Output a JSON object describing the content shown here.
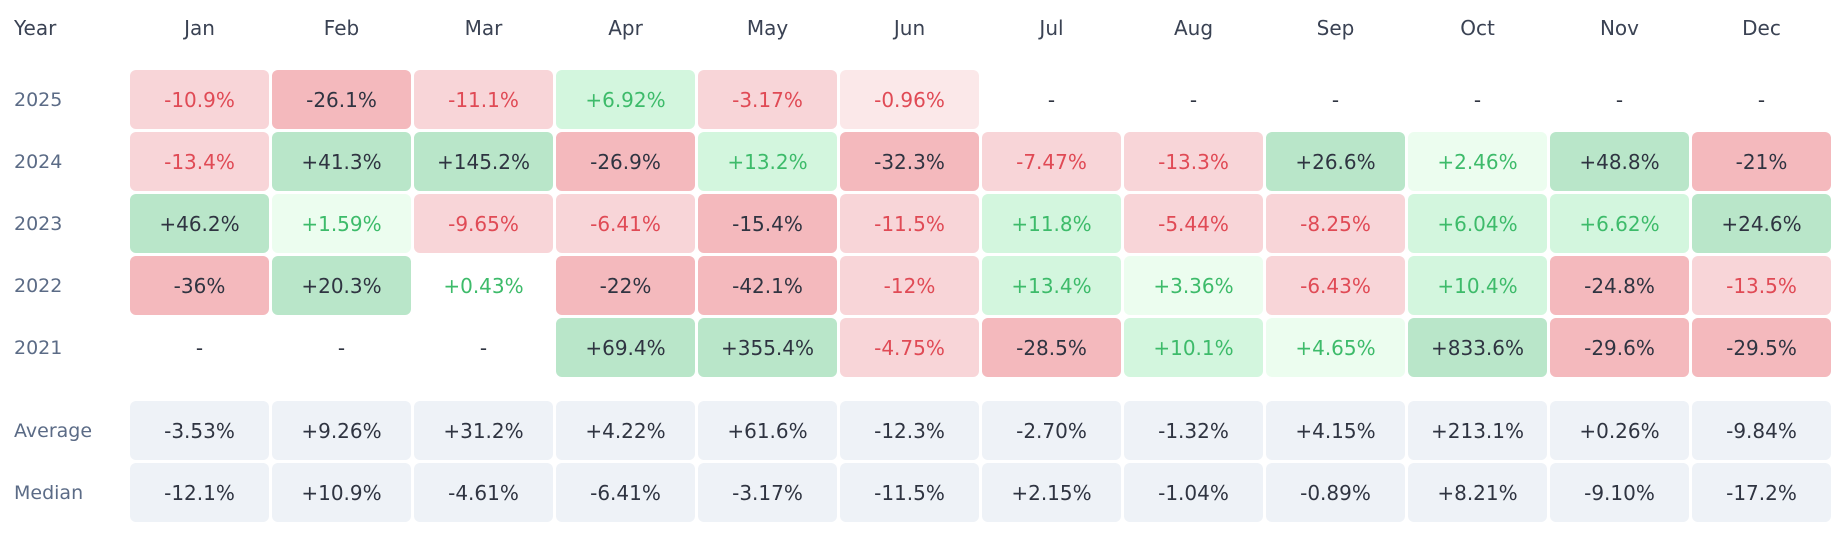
{
  "chart_data": {
    "type": "heatmap",
    "title": "",
    "row_header": "Year",
    "columns": [
      "Jan",
      "Feb",
      "Mar",
      "Apr",
      "May",
      "Jun",
      "Jul",
      "Aug",
      "Sep",
      "Oct",
      "Nov",
      "Dec"
    ],
    "rows": [
      {
        "label": "2025",
        "cells": [
          "-10.9%",
          "-26.1%",
          "-11.1%",
          "+6.92%",
          "-3.17%",
          "-0.96%",
          "-",
          "-",
          "-",
          "-",
          "-",
          "-"
        ]
      },
      {
        "label": "2024",
        "cells": [
          "-13.4%",
          "+41.3%",
          "+145.2%",
          "-26.9%",
          "+13.2%",
          "-32.3%",
          "-7.47%",
          "-13.3%",
          "+26.6%",
          "+2.46%",
          "+48.8%",
          "-21%"
        ]
      },
      {
        "label": "2023",
        "cells": [
          "+46.2%",
          "+1.59%",
          "-9.65%",
          "-6.41%",
          "-15.4%",
          "-11.5%",
          "+11.8%",
          "-5.44%",
          "-8.25%",
          "+6.04%",
          "+6.62%",
          "+24.6%"
        ]
      },
      {
        "label": "2022",
        "cells": [
          "-36%",
          "+20.3%",
          "+0.43%",
          "-22%",
          "-42.1%",
          "-12%",
          "+13.4%",
          "+3.36%",
          "-6.43%",
          "+10.4%",
          "-24.8%",
          "-13.5%"
        ]
      },
      {
        "label": "2021",
        "cells": [
          "-",
          "-",
          "-",
          "+69.4%",
          "+355.4%",
          "-4.75%",
          "-28.5%",
          "+10.1%",
          "+4.65%",
          "+833.6%",
          "-29.6%",
          "-29.5%"
        ]
      }
    ],
    "summary_rows": [
      {
        "label": "Average",
        "cells": [
          "-3.53%",
          "+9.26%",
          "+31.2%",
          "+4.22%",
          "+61.6%",
          "-12.3%",
          "-2.70%",
          "-1.32%",
          "+4.15%",
          "+213.1%",
          "+0.26%",
          "-9.84%"
        ]
      },
      {
        "label": "Median",
        "cells": [
          "-12.1%",
          "+10.9%",
          "-4.61%",
          "-6.41%",
          "-3.17%",
          "-11.5%",
          "+2.15%",
          "-1.04%",
          "-0.89%",
          "+8.21%",
          "-9.10%",
          "-17.2%"
        ]
      }
    ],
    "colors": {
      "pos_strong_bg": "#b9e6c9",
      "pos_mid_bg": "#d3f6de",
      "pos_light_bg": "#ecfdef",
      "neg_strong_bg": "#f4b9bd",
      "neg_mid_bg": "#f8d5d8",
      "neg_light_bg": "#fbe8e9",
      "summary_bg": "#eef2f7",
      "pos_text": "#3dbb6a",
      "neg_text": "#e04a55",
      "dark_text": "#2f3441",
      "label_text": "#5b6b86",
      "header_text": "#3a4253"
    }
  }
}
